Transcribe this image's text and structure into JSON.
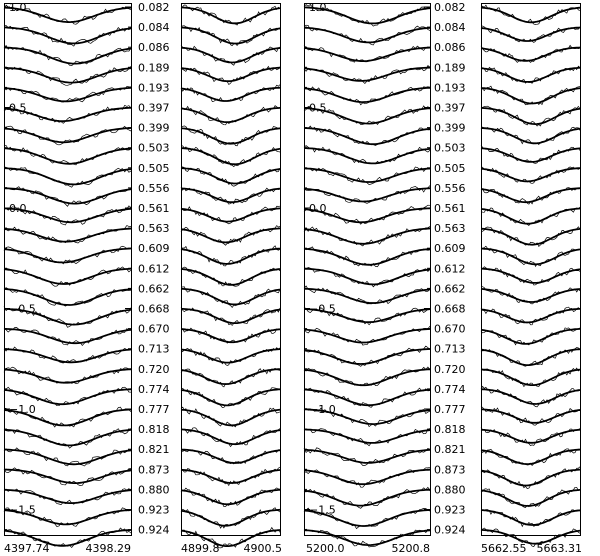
{
  "chart_data": {
    "type": "line",
    "title": "",
    "xlabel": "",
    "ylabel": "",
    "ylim": [
      -1.6,
      1.0
    ],
    "y_ticks": [
      "1.0",
      "0.5",
      "0.0",
      "−0.5",
      "−1.0",
      "−1.5"
    ],
    "y_tick_values": [
      1.0,
      0.5,
      0.0,
      -0.5,
      -1.0,
      -1.5
    ],
    "phases": [
      "0.082",
      "0.084",
      "0.086",
      "0.189",
      "0.193",
      "0.397",
      "0.399",
      "0.503",
      "0.505",
      "0.556",
      "0.561",
      "0.563",
      "0.609",
      "0.612",
      "0.662",
      "0.668",
      "0.670",
      "0.713",
      "0.720",
      "0.774",
      "0.777",
      "0.818",
      "0.821",
      "0.873",
      "0.880",
      "0.923",
      "0.924"
    ],
    "profile_offset_step": -0.1,
    "line_depth": 0.075,
    "panels": [
      {
        "xlim_label_left": "4397.74",
        "xlim_label_right": "4398.29",
        "xlim": [
          4397.74,
          4398.29
        ],
        "center": 4398.02
      },
      {
        "xlim_label_left": "4899.8",
        "xlim_label_right": "4900.5",
        "xlim": [
          4899.8,
          4900.5
        ],
        "center": 4900.15
      },
      {
        "xlim_label_left": "5200.0",
        "xlim_label_right": "5200.8",
        "xlim": [
          5200.0,
          5200.8
        ],
        "center": 5200.4
      },
      {
        "xlim_label_left": "5662.55",
        "xlim_label_right": "5663.31",
        "xlim": [
          5662.55,
          5663.31
        ],
        "center": 5662.93
      }
    ]
  }
}
